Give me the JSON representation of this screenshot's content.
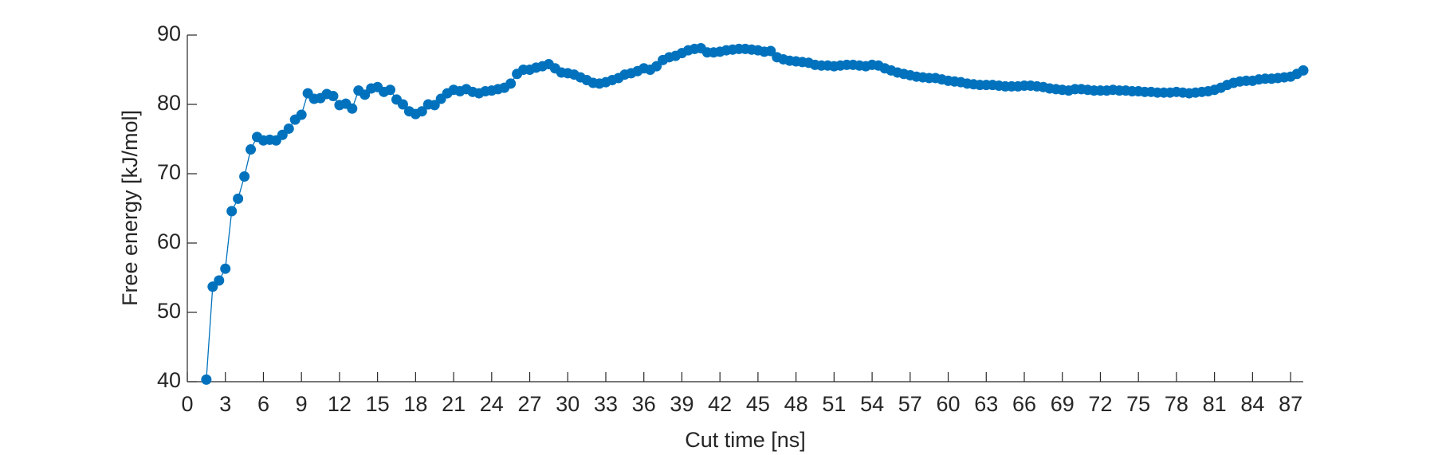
{
  "chart_data": {
    "type": "line",
    "xlabel": "Cut time [ns]",
    "ylabel": "Free energy [kJ/mol]",
    "xlim": [
      0,
      88
    ],
    "ylim": [
      40,
      90
    ],
    "xticks": [
      0,
      3,
      6,
      9,
      12,
      15,
      18,
      21,
      24,
      27,
      30,
      33,
      36,
      39,
      42,
      45,
      48,
      51,
      54,
      57,
      60,
      63,
      66,
      69,
      72,
      75,
      78,
      81,
      84,
      87
    ],
    "yticks": [
      40,
      50,
      60,
      70,
      80,
      90
    ],
    "grid": false,
    "x": [
      1.5,
      2,
      2.5,
      3,
      3.5,
      4,
      4.5,
      5,
      5.5,
      6,
      6.5,
      7,
      7.5,
      8,
      8.5,
      9,
      9.5,
      10,
      10.5,
      11,
      11.5,
      12,
      12.5,
      13,
      13.5,
      14,
      14.5,
      15,
      15.5,
      16,
      16.5,
      17,
      17.5,
      18,
      18.5,
      19,
      19.5,
      20,
      20.5,
      21,
      21.5,
      22,
      22.5,
      23,
      23.5,
      24,
      24.5,
      25,
      25.5,
      26,
      26.5,
      27,
      27.5,
      28,
      28.5,
      29,
      29.5,
      30,
      30.5,
      31,
      31.5,
      32,
      32.5,
      33,
      33.5,
      34,
      34.5,
      35,
      35.5,
      36,
      36.5,
      37,
      37.5,
      38,
      38.5,
      39,
      39.5,
      40,
      40.5,
      41,
      41.5,
      42,
      42.5,
      43,
      43.5,
      44,
      44.5,
      45,
      45.5,
      46,
      46.5,
      47,
      47.5,
      48,
      48.5,
      49,
      49.5,
      50,
      50.5,
      51,
      51.5,
      52,
      52.5,
      53,
      53.5,
      54,
      54.5,
      55,
      55.5,
      56,
      56.5,
      57,
      57.5,
      58,
      58.5,
      59,
      59.5,
      60,
      60.5,
      61,
      61.5,
      62,
      62.5,
      63,
      63.5,
      64,
      64.5,
      65,
      65.5,
      66,
      66.5,
      67,
      67.5,
      68,
      68.5,
      69,
      69.5,
      70,
      70.5,
      71,
      71.5,
      72,
      72.5,
      73,
      73.5,
      74,
      74.5,
      75,
      75.5,
      76,
      76.5,
      77,
      77.5,
      78,
      78.5,
      79,
      79.5,
      80,
      80.5,
      81,
      81.5,
      82,
      82.5,
      83,
      83.5,
      84,
      84.5,
      85,
      85.5,
      86,
      86.5,
      87,
      87.5,
      88
    ],
    "series": [
      {
        "color": "#0072bd",
        "values": [
          40.3,
          53.7,
          54.6,
          56.3,
          64.6,
          66.4,
          69.6,
          73.5,
          75.3,
          74.8,
          74.9,
          74.8,
          75.6,
          76.5,
          77.8,
          78.5,
          81.6,
          80.8,
          80.9,
          81.5,
          81.2,
          79.9,
          80.1,
          79.4,
          82.0,
          81.4,
          82.3,
          82.5,
          81.8,
          82.1,
          80.7,
          80.0,
          79.0,
          78.6,
          79.0,
          80.0,
          79.9,
          80.8,
          81.6,
          82.1,
          81.9,
          82.2,
          81.8,
          81.6,
          81.9,
          82.0,
          82.2,
          82.4,
          83.0,
          84.4,
          85.0,
          85.0,
          85.3,
          85.5,
          85.8,
          85.2,
          84.6,
          84.5,
          84.3,
          83.9,
          83.5,
          83.1,
          83.0,
          83.2,
          83.5,
          83.8,
          84.3,
          84.5,
          84.8,
          85.2,
          85.0,
          85.5,
          86.4,
          86.8,
          87.0,
          87.4,
          87.8,
          88.0,
          88.1,
          87.5,
          87.5,
          87.6,
          87.8,
          87.9,
          88.0,
          88.0,
          87.9,
          87.8,
          87.6,
          87.7,
          86.8,
          86.5,
          86.3,
          86.2,
          86.1,
          86.0,
          85.7,
          85.6,
          85.6,
          85.5,
          85.6,
          85.7,
          85.7,
          85.6,
          85.5,
          85.7,
          85.6,
          85.2,
          84.9,
          84.6,
          84.4,
          84.2,
          84.0,
          83.9,
          83.8,
          83.8,
          83.6,
          83.4,
          83.3,
          83.2,
          83.0,
          82.9,
          82.8,
          82.8,
          82.8,
          82.7,
          82.6,
          82.6,
          82.6,
          82.7,
          82.7,
          82.6,
          82.5,
          82.3,
          82.2,
          82.1,
          82.0,
          82.2,
          82.2,
          82.1,
          82.0,
          82.0,
          82.0,
          82.1,
          82.0,
          82.0,
          81.9,
          81.9,
          81.8,
          81.8,
          81.7,
          81.7,
          81.7,
          81.8,
          81.7,
          81.6,
          81.7,
          81.8,
          81.9,
          82.1,
          82.4,
          82.8,
          83.1,
          83.3,
          83.4,
          83.4,
          83.6,
          83.7,
          83.7,
          83.8,
          83.9,
          84.0,
          84.4,
          84.9
        ]
      }
    ]
  }
}
